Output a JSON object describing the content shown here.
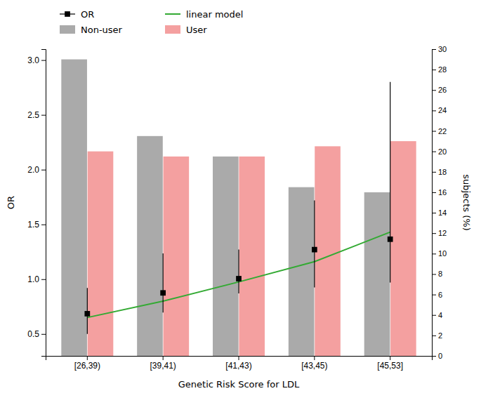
{
  "chart_data": {
    "type": "bar",
    "categories": [
      "[26,39)",
      "[39,41)",
      "[41,43)",
      "[43,45)",
      "[45,53]"
    ],
    "series": [
      {
        "name": "OR",
        "type": "scatter",
        "color": "black",
        "marker": "square",
        "values": [
          0.685,
          0.875,
          1.005,
          1.27,
          1.365
        ],
        "ci_low": [
          0.5,
          0.695,
          0.87,
          0.925,
          0.97
        ],
        "ci_high": [
          0.92,
          1.235,
          1.27,
          1.72,
          2.8
        ]
      },
      {
        "name": "Non-user",
        "type": "bar",
        "color": "#aaaaaa",
        "axis": "y2",
        "values": [
          29.0,
          21.5,
          19.5,
          16.5,
          16.0
        ]
      },
      {
        "name": "linear model",
        "type": "line",
        "color": "#33aa33",
        "values": [
          0.65,
          0.8,
          0.975,
          1.16,
          1.43
        ]
      },
      {
        "name": "User",
        "type": "bar",
        "color": "#F4A0A0",
        "axis": "y2",
        "values": [
          20.0,
          19.5,
          19.5,
          20.5,
          21.0
        ]
      }
    ],
    "xlabel": "Genetic Risk Score for LDL",
    "ylabel": "OR",
    "y2label": "subjects (%)",
    "ylim": [
      0.3,
      3.1
    ],
    "yticks": [
      0.5,
      {
        "value": 1.0,
        "label": "1.0"
      },
      1.5,
      {
        "value": 2.0,
        "label": "2.0"
      },
      2.5,
      {
        "value": 3.0,
        "label": "3.0"
      }
    ],
    "y2lim": [
      0,
      30
    ],
    "y2ticks": [
      0,
      2,
      4,
      6,
      8,
      10,
      12,
      14,
      16,
      18,
      20,
      22,
      24,
      26,
      28,
      30
    ],
    "legend": "top",
    "grid": false
  }
}
